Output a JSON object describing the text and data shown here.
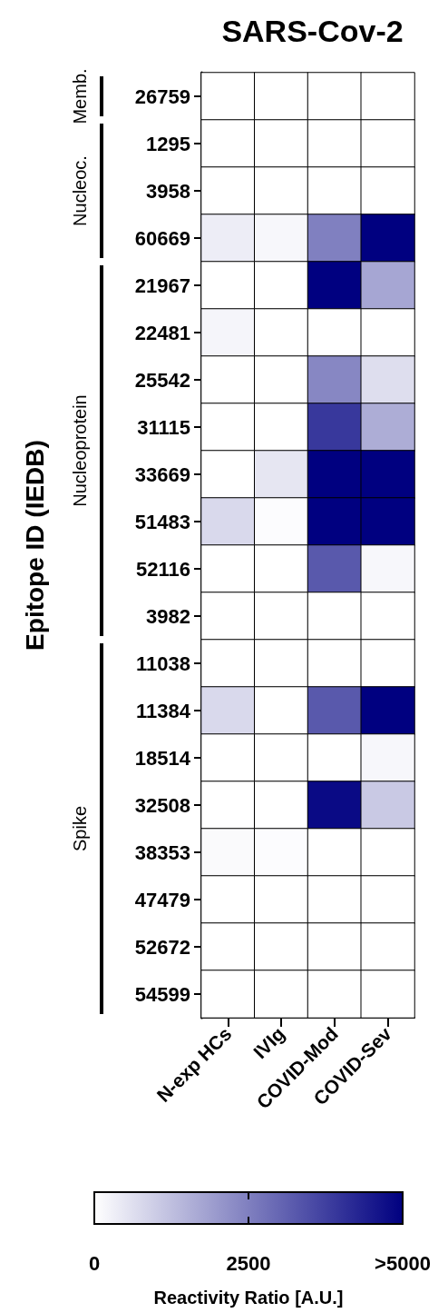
{
  "chart_data": {
    "type": "heatmap",
    "title": "SARS-Cov-2",
    "ylabel": "Epitope ID (IEDB)",
    "clabel": "Reactivity Ratio [A.U.]",
    "categories": [
      "N-exp HCs",
      "IVIg",
      "COVID-Mod",
      "COVID-Sev"
    ],
    "y_categories": [
      "26759",
      "1295",
      "3958",
      "60669",
      "21967",
      "22481",
      "25542",
      "31115",
      "33669",
      "51483",
      "52116",
      "3982",
      "11038",
      "11384",
      "18514",
      "32508",
      "38353",
      "47479",
      "52672",
      "54599"
    ],
    "cells": [
      [
        0,
        0,
        0,
        0
      ],
      [
        0,
        0,
        0,
        0
      ],
      [
        0,
        0,
        0,
        0
      ],
      [
        350,
        150,
        2500,
        5000
      ],
      [
        0,
        0,
        5000,
        1750
      ],
      [
        200,
        0,
        0,
        0
      ],
      [
        0,
        0,
        2350,
        650
      ],
      [
        0,
        0,
        3900,
        1600
      ],
      [
        0,
        500,
        5000,
        5000
      ],
      [
        750,
        50,
        5000,
        5000
      ],
      [
        0,
        0,
        3250,
        150
      ],
      [
        0,
        0,
        0,
        0
      ],
      [
        0,
        0,
        0,
        0
      ],
      [
        750,
        0,
        3250,
        5000
      ],
      [
        0,
        0,
        0,
        150
      ],
      [
        0,
        0,
        4800,
        1050
      ],
      [
        100,
        50,
        0,
        0
      ],
      [
        0,
        0,
        0,
        0
      ],
      [
        0,
        0,
        0,
        0
      ],
      [
        0,
        0,
        0,
        0
      ]
    ],
    "clim": [
      0,
      5000
    ],
    "cticks": [
      0,
      2500,
      {
        "value": 5000,
        "label": ">5000"
      }
    ],
    "annotations": [
      "Memb.",
      "Nucleoc.",
      "Nucleoprotein",
      "Spike"
    ]
  }
}
